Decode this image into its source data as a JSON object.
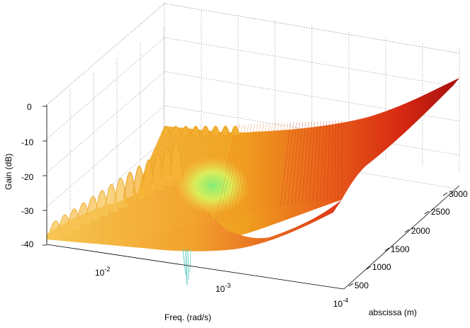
{
  "chart_data": {
    "type": "surface",
    "title": "",
    "xlabel": "Freq. (rad/s)",
    "ylabel": "abscissa (m)",
    "zlabel": "Gain (dB)",
    "x_scale": "log",
    "x_ticks": [
      {
        "value": 0.01,
        "base": "10",
        "exp": "-2"
      },
      {
        "value": 0.001,
        "base": "10",
        "exp": "-3"
      },
      {
        "value": 0.0001,
        "base": "10",
        "exp": "-4"
      }
    ],
    "y_ticks": [
      "500",
      "1000",
      "1500",
      "2000",
      "2500",
      "3000"
    ],
    "z_ticks": [
      "0",
      "-10",
      "-20",
      "-30",
      "-40"
    ],
    "zlim": [
      -40,
      0
    ],
    "grid": true,
    "colormap": "jet",
    "surface_notes": "Gain oscillates between about -40 and -5 dB at high frequency near short abscissa, with a dip near 2e-3 rad/s around -28 dB and a notch near 3e-3 rad/s reaching below -40 dB; at low frequency (1e-4 rad/s) the gain rises linearly with abscissa from about -28 dB at 500 m to about -6 dB at 3000 m."
  }
}
